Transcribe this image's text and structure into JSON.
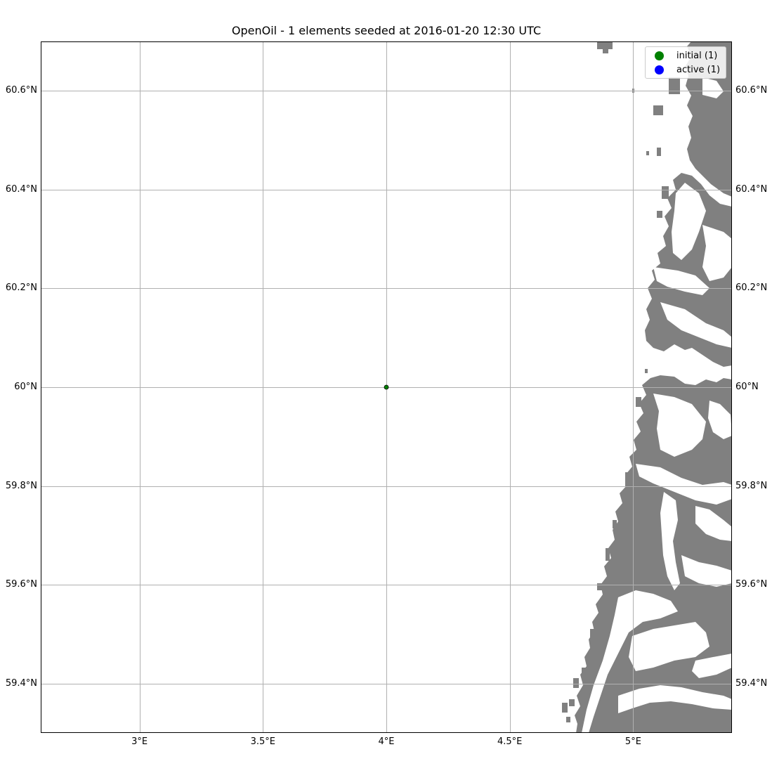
{
  "title": "OpenOil - 1 elements seeded at 2016-01-20 12:30 UTC",
  "map": {
    "lon_range": [
      2.6,
      5.4
    ],
    "lat_range": [
      59.3,
      60.7
    ],
    "lon_ticks": [
      {
        "value": 3.0,
        "label": "3°E"
      },
      {
        "value": 3.5,
        "label": "3.5°E"
      },
      {
        "value": 4.0,
        "label": "4°E"
      },
      {
        "value": 4.5,
        "label": "4.5°E"
      },
      {
        "value": 5.0,
        "label": "5°E"
      }
    ],
    "lat_ticks": [
      {
        "value": 60.6,
        "label": "60.6°N"
      },
      {
        "value": 60.4,
        "label": "60.4°N"
      },
      {
        "value": 60.2,
        "label": "60.2°N"
      },
      {
        "value": 60.0,
        "label": "60°N"
      },
      {
        "value": 59.8,
        "label": "59.8°N"
      },
      {
        "value": 59.6,
        "label": "59.6°N"
      },
      {
        "value": 59.4,
        "label": "59.4°N"
      }
    ],
    "grid": true,
    "land_color": "#808080",
    "ocean_color": "#ffffff",
    "grid_color": "#b0b0b0"
  },
  "elements": [
    {
      "status": "initial",
      "lon": 4.0,
      "lat": 60.0,
      "color": "#008000"
    }
  ],
  "legend": {
    "placement": "top-right",
    "items": [
      {
        "label": "initial (1)",
        "color": "#008000"
      },
      {
        "label": "active (1)",
        "color": "#0000ff"
      }
    ]
  }
}
